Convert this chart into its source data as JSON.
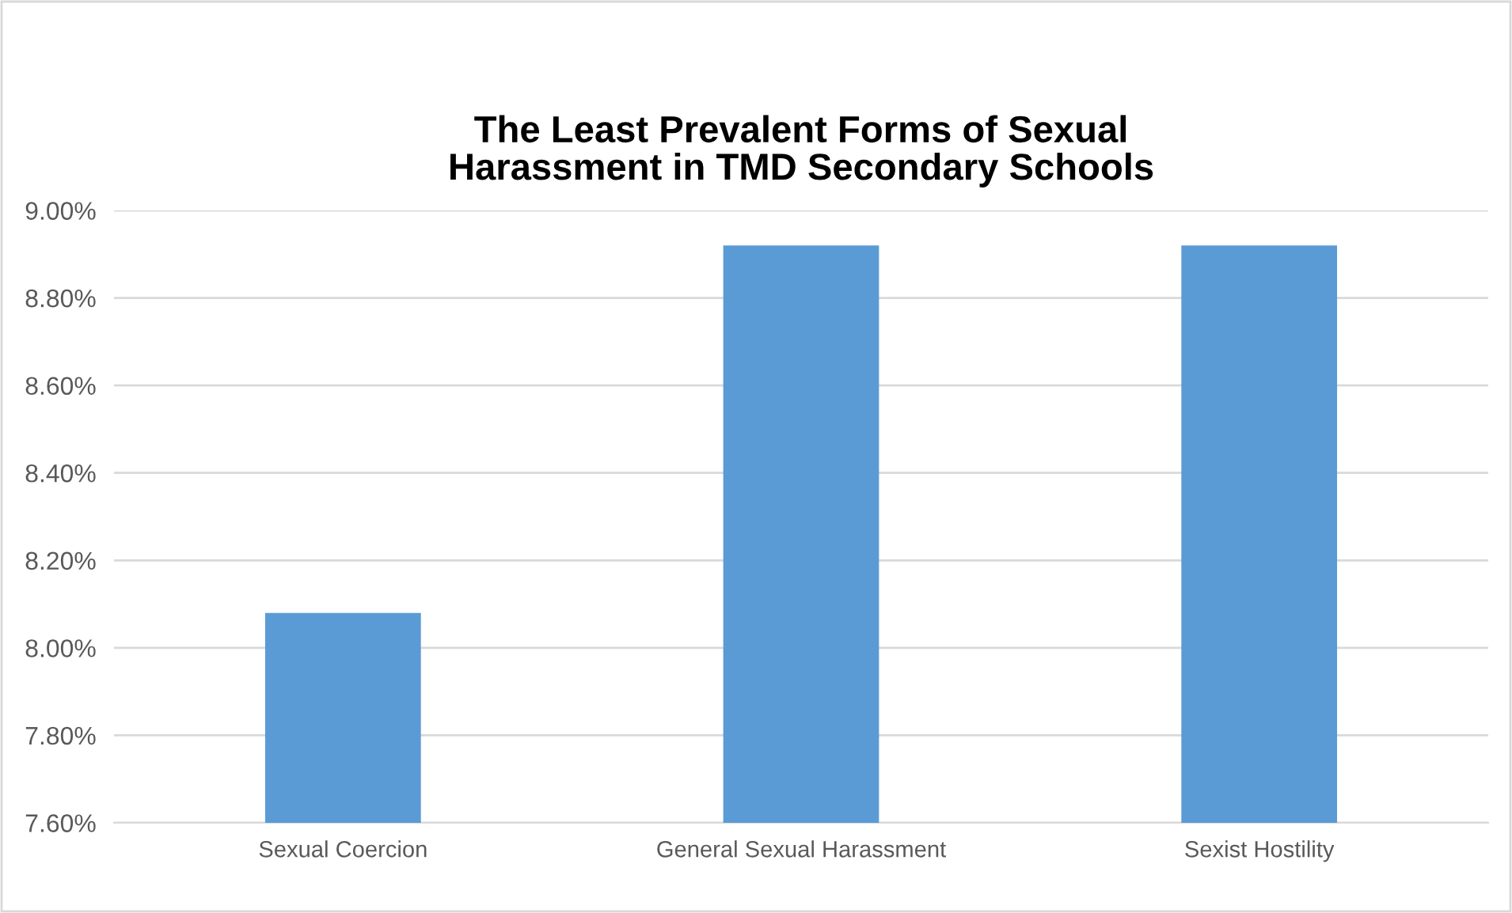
{
  "chart_data": {
    "type": "bar",
    "title": "The Least Prevalent Forms of Sexual\nHarassment in TMD Secondary Schools",
    "categories": [
      "Sexual Coercion",
      "General Sexual Harassment",
      "Sexist Hostility"
    ],
    "values": [
      8.08,
      8.92,
      8.92
    ],
    "color": "#5b9bd5",
    "ylim": [
      7.6,
      9.0
    ],
    "yticks": [
      {
        "value": 7.6,
        "label": "7.60%"
      },
      {
        "value": 7.8,
        "label": "7.80%"
      },
      {
        "value": 8.0,
        "label": "8.00%"
      },
      {
        "value": 8.2,
        "label": "8.20%"
      },
      {
        "value": 8.4,
        "label": "8.40%"
      },
      {
        "value": 8.6,
        "label": "8.60%"
      },
      {
        "value": 8.8,
        "label": "8.80%"
      },
      {
        "value": 9.0,
        "label": "9.00%"
      }
    ],
    "grid": "y"
  }
}
